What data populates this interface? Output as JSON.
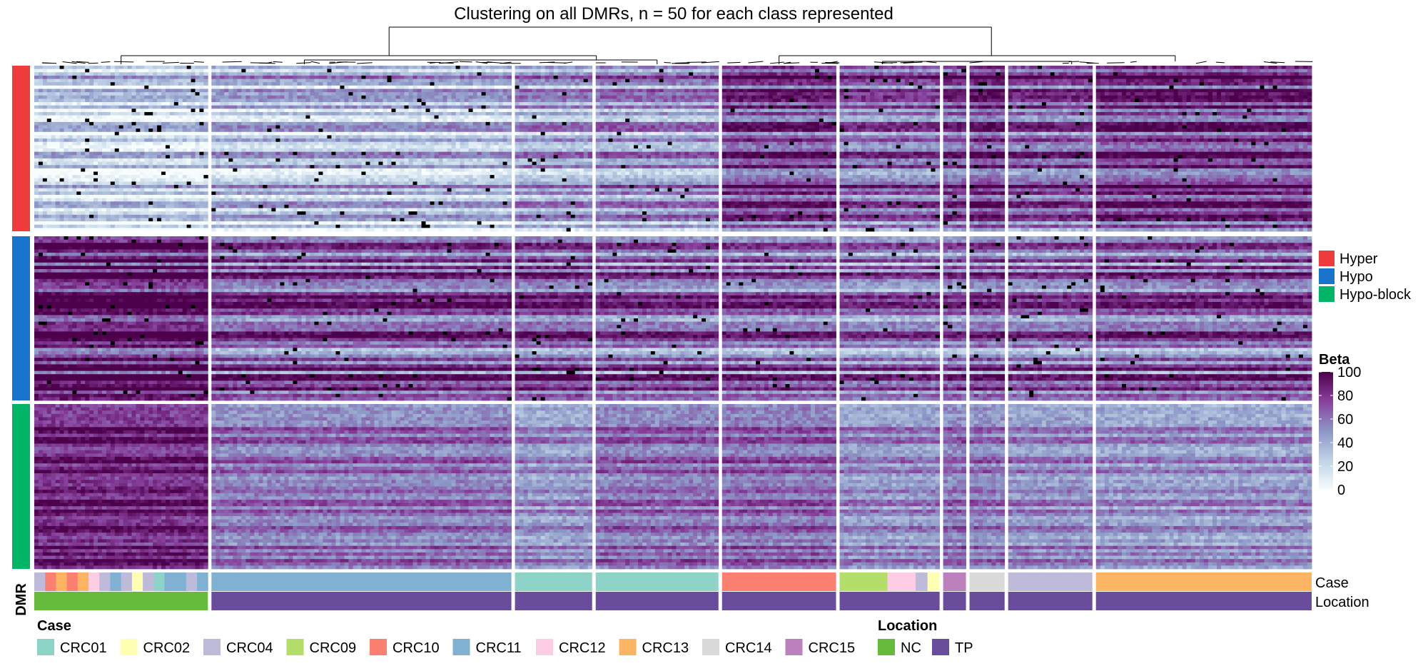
{
  "chart_data": {
    "type": "heatmap",
    "title": "Clustering on all DMRs, n = 50 for each class represented",
    "row_annotation": {
      "label": "DMR",
      "groups": [
        {
          "name": "Hyper",
          "color": "#EE3B3B",
          "rows": 50
        },
        {
          "name": "Hypo",
          "color": "#1874CD",
          "rows": 50
        },
        {
          "name": "Hypo-block",
          "color": "#00B566",
          "rows": 50
        }
      ]
    },
    "color_scale": {
      "title": "Beta",
      "min": 0,
      "max": 100,
      "ticks": [
        "0",
        "20",
        "40",
        "60",
        "80",
        "100"
      ],
      "colors": [
        "#F7FCFD",
        "#BFD3E6",
        "#8C96C6",
        "#88419D",
        "#4D004B"
      ]
    },
    "column_annotations": {
      "case_label": "Case",
      "location_label": "Location"
    },
    "column_blocks": [
      {
        "case": "mixed",
        "location": "NC",
        "rel_width": 0.99,
        "profile": {
          "hyper": 18,
          "hypo": 85,
          "block": 88
        }
      },
      {
        "case": "CRC11",
        "location": "TP",
        "rel_width": 1.71,
        "profile": {
          "hyper": 30,
          "hypo": 65,
          "block": 62
        }
      },
      {
        "case": "CRC01",
        "location": "TP",
        "rel_width": 0.44,
        "profile": {
          "hyper": 40,
          "hypo": 65,
          "block": 52
        }
      },
      {
        "case": "CRC01",
        "location": "TP",
        "rel_width": 0.7,
        "profile": {
          "hyper": 45,
          "hypo": 60,
          "block": 64
        }
      },
      {
        "case": "CRC10",
        "location": "TP",
        "rel_width": 0.65,
        "profile": {
          "hyper": 72,
          "hypo": 60,
          "block": 66
        }
      },
      {
        "case": "CRC09/CRC12",
        "location": "TP",
        "rel_width": 0.57,
        "profile": {
          "hyper": 60,
          "hypo": 55,
          "block": 54
        }
      },
      {
        "case": "CRC15",
        "location": "TP",
        "rel_width": 0.13,
        "profile": {
          "hyper": 68,
          "hypo": 58,
          "block": 62
        }
      },
      {
        "case": "CRC14",
        "location": "TP",
        "rel_width": 0.2,
        "profile": {
          "hyper": 75,
          "hypo": 62,
          "block": 60
        }
      },
      {
        "case": "CRC04",
        "location": "TP",
        "rel_width": 0.48,
        "profile": {
          "hyper": 65,
          "hypo": 58,
          "block": 55
        }
      },
      {
        "case": "CRC13",
        "location": "TP",
        "rel_width": 1.23,
        "profile": {
          "hyper": 75,
          "hypo": 62,
          "block": 52
        }
      }
    ],
    "legends": {
      "case": {
        "title": "Case",
        "items": [
          {
            "label": "CRC01",
            "color": "#8DD3C7"
          },
          {
            "label": "CRC02",
            "color": "#FFFFB3"
          },
          {
            "label": "CRC04",
            "color": "#BEBADA"
          },
          {
            "label": "CRC09",
            "color": "#B3DE69"
          },
          {
            "label": "CRC10",
            "color": "#FB8072"
          },
          {
            "label": "CRC11",
            "color": "#80B1D3"
          },
          {
            "label": "CRC12",
            "color": "#FCCDE5"
          },
          {
            "label": "CRC13",
            "color": "#FDB462"
          },
          {
            "label": "CRC14",
            "color": "#D9D9D9"
          },
          {
            "label": "CRC15",
            "color": "#BC80BD"
          }
        ]
      },
      "location": {
        "title": "Location",
        "items": [
          {
            "label": "NC",
            "color": "#66BB3C"
          },
          {
            "label": "TP",
            "color": "#6A4C9C"
          }
        ]
      }
    }
  }
}
